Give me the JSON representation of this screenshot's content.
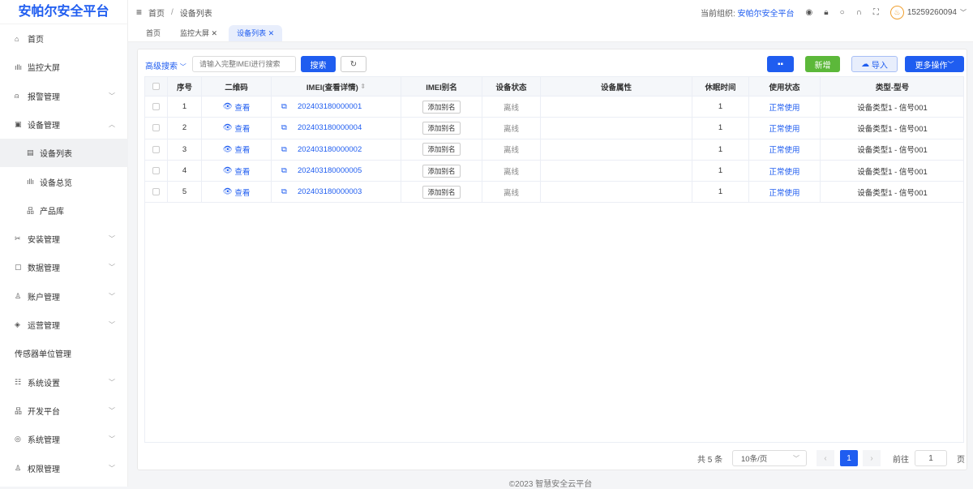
{
  "app": {
    "title": "安帕尔安全平台",
    "footer": "©2023 智慧安全云平台"
  },
  "sidebar": {
    "items": [
      {
        "label": "首页",
        "icon": "home-icon",
        "chev": ""
      },
      {
        "label": "监控大屏",
        "icon": "chart-icon",
        "chev": ""
      },
      {
        "label": "报警管理",
        "icon": "alarm-icon",
        "chev": "﹀"
      },
      {
        "label": "设备管理",
        "icon": "device-icon",
        "chev": "︿"
      },
      {
        "label": "设备列表",
        "icon": "list-icon",
        "chev": "",
        "sub": true,
        "active": true
      },
      {
        "label": "设备总览",
        "icon": "chart-icon",
        "chev": "",
        "sub": true
      },
      {
        "label": "产品库",
        "icon": "product-icon",
        "chev": "",
        "sub": true
      },
      {
        "label": "安装管理",
        "icon": "tools-icon",
        "chev": "﹀"
      },
      {
        "label": "数据管理",
        "icon": "data-icon",
        "chev": "﹀"
      },
      {
        "label": "账户管理",
        "icon": "user-icon",
        "chev": "﹀"
      },
      {
        "label": "运营管理",
        "icon": "operation-icon",
        "chev": "﹀"
      },
      {
        "label": "传感器单位管理",
        "icon": "",
        "chev": ""
      },
      {
        "label": "系统设置",
        "icon": "settings-icon",
        "chev": "﹀"
      },
      {
        "label": "开发平台",
        "icon": "dev-icon",
        "chev": "﹀"
      },
      {
        "label": "系统管理",
        "icon": "system-icon",
        "chev": "﹀"
      },
      {
        "label": "权限管理",
        "icon": "permission-icon",
        "chev": "﹀"
      }
    ]
  },
  "header": {
    "breadcrumb": [
      "首页",
      "设备列表"
    ],
    "org_label": "当前组织:",
    "org": "安帕尔安全平台",
    "user": "15259260094"
  },
  "tabs": [
    {
      "label": "首页",
      "closable": false
    },
    {
      "label": "监控大屏",
      "closable": true
    },
    {
      "label": "设备列表",
      "closable": true,
      "active": true
    }
  ],
  "toolbar": {
    "advanced": "高级搜索",
    "search_placeholder": "请输入完整IMEI进行搜索",
    "search": "搜索",
    "add": "新增",
    "import": "导入",
    "more": "更多操作"
  },
  "table": {
    "columns": [
      "序号",
      "二维码",
      "IMEI(查看详情)",
      "IMEI别名",
      "设备状态",
      "设备属性",
      "休眠时间",
      "使用状态",
      "类型-型号"
    ],
    "view_label": "查看",
    "alias_label": "添加别名",
    "rows": [
      {
        "no": "1",
        "imei": "202403180000001",
        "status": "离线",
        "attr": "",
        "sleep": "1",
        "use": "正常使用",
        "type": "设备类型1 - 信号001"
      },
      {
        "no": "2",
        "imei": "202403180000004",
        "status": "离线",
        "attr": "",
        "sleep": "1",
        "use": "正常使用",
        "type": "设备类型1 - 信号001"
      },
      {
        "no": "3",
        "imei": "202403180000002",
        "status": "离线",
        "attr": "",
        "sleep": "1",
        "use": "正常使用",
        "type": "设备类型1 - 信号001"
      },
      {
        "no": "4",
        "imei": "202403180000005",
        "status": "离线",
        "attr": "",
        "sleep": "1",
        "use": "正常使用",
        "type": "设备类型1 - 信号001"
      },
      {
        "no": "5",
        "imei": "202403180000003",
        "status": "离线",
        "attr": "",
        "sleep": "1",
        "use": "正常使用",
        "type": "设备类型1 - 信号001"
      }
    ]
  },
  "pagination": {
    "total": "共 5 条",
    "page_size": "10条/页",
    "current": "1",
    "goto_label": "前往",
    "goto_value": "1",
    "page_unit": "页"
  },
  "colors": {
    "primary": "#1f5df0",
    "success": "#5cb83a"
  }
}
